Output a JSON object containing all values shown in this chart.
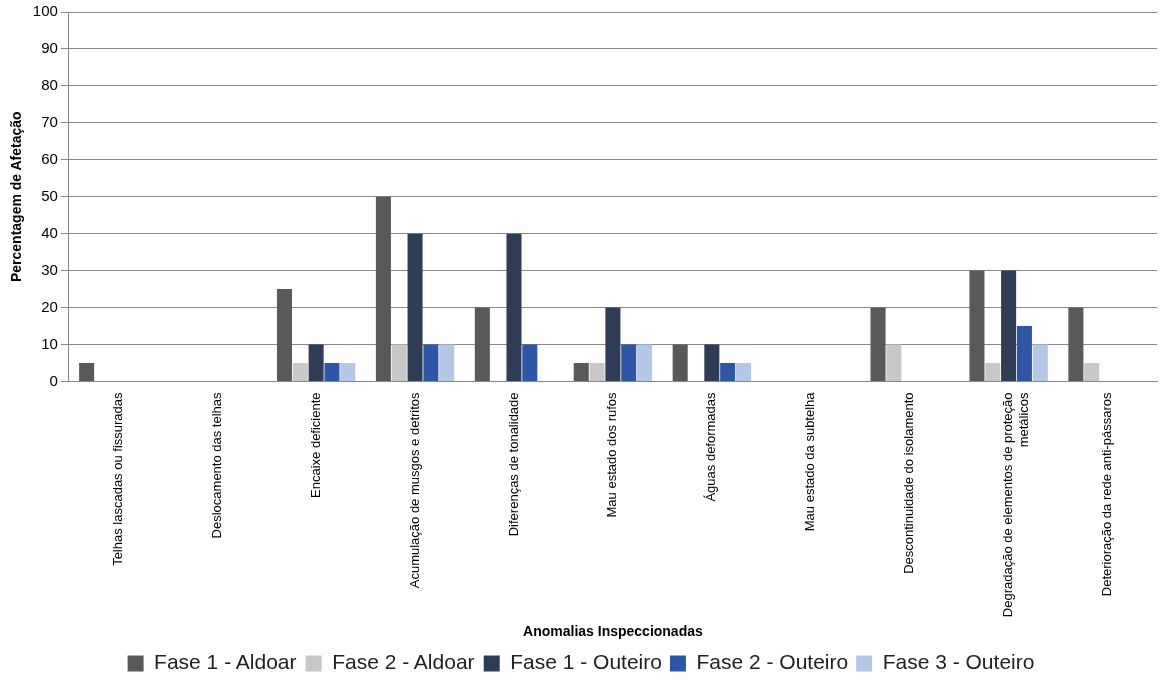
{
  "chart_data": {
    "type": "bar",
    "xlabel": "Anomalias Inspeccionadas",
    "ylabel": "Percentagem de Afetação",
    "categories": [
      "Telhas lascadas ou fissuradas",
      "Deslocamento das telhas",
      "Encaixe deficiente",
      "Acumulação de musgos e detritos",
      "Diferenças de tonalidade",
      "Mau estado dos rufos",
      "Águas deformadas",
      "Mau estado da subtelha",
      "Descontinuidade do isolamento",
      "Degradação de elementos de proteção metálicos",
      "Deterioração da rede anti-pássaros"
    ],
    "series": [
      {
        "name": "Fase 1 - Aldoar",
        "color": "#595959",
        "values": [
          5,
          0,
          25,
          50,
          20,
          5,
          10,
          0,
          20,
          30,
          20
        ]
      },
      {
        "name": "Fase 2 - Aldoar",
        "color": "#c8c8c8",
        "values": [
          0,
          0,
          5,
          10,
          0,
          5,
          0,
          0,
          10,
          5,
          5
        ]
      },
      {
        "name": "Fase 1 - Outeiro",
        "color": "#2f3c55",
        "values": [
          0,
          0,
          10,
          40,
          40,
          20,
          10,
          0,
          0,
          30,
          0
        ]
      },
      {
        "name": "Fase 2 - Outeiro",
        "color": "#2e56a8",
        "values": [
          0,
          0,
          5,
          10,
          10,
          10,
          5,
          0,
          0,
          15,
          0
        ]
      },
      {
        "name": "Fase 3 - Outeiro",
        "color": "#b4c7e7",
        "values": [
          0,
          0,
          5,
          10,
          0,
          10,
          5,
          0,
          0,
          10,
          0
        ]
      }
    ],
    "ylim": [
      0,
      100
    ],
    "yticks": [
      0,
      10,
      20,
      30,
      40,
      50,
      60,
      70,
      80,
      90,
      100
    ],
    "grid": "y",
    "legend": "bottom"
  }
}
